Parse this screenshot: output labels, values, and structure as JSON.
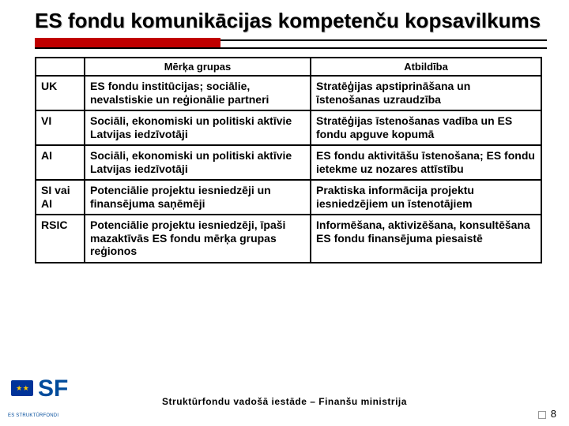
{
  "title": "ES fondu komunikācijas kompetenču kopsavilkums",
  "accent_color": "#c00000",
  "table": {
    "headers": [
      "",
      "Mērķa grupas",
      "Atbildība"
    ],
    "rows": [
      {
        "label": "UK",
        "targets": "ES fondu institūcijas; sociālie, nevalstiskie un reģionālie partneri",
        "resp": "Stratēģijas apstiprināšana un īstenošanas uzraudzība"
      },
      {
        "label": "VI",
        "targets": "Sociāli, ekonomiski un politiski aktīvie Latvijas iedzīvotāji",
        "resp": "Stratēģijas īstenošanas vadība un ES fondu apguve kopumā"
      },
      {
        "label": "AI",
        "targets": "Sociāli, ekonomiski un politiski aktīvie Latvijas iedzīvotāji",
        "resp": "ES fondu aktivitāšu īstenošana; ES fondu ietekme uz nozares attīstību"
      },
      {
        "label": "SI vai AI",
        "targets": "Potenciālie projektu iesniedzēji un finansējuma saņēmēji",
        "resp": "Praktiska informācija projektu iesniedzējiem un īstenotājiem"
      },
      {
        "label": "RSIC",
        "targets": "Potenciālie projektu iesniedzēji, īpaši mazaktīvās ES fondu mērķa grupas reģionos",
        "resp": "Informēšana, aktivizēšana, konsultēšana ES fondu finansējuma piesaistē"
      }
    ]
  },
  "logo": {
    "mark": "SF",
    "sub": "ES STRUKTŪRFONDI"
  },
  "footer": "Struktūrfondu vadošā iestāde – Finanšu ministrija",
  "page_number": "8"
}
